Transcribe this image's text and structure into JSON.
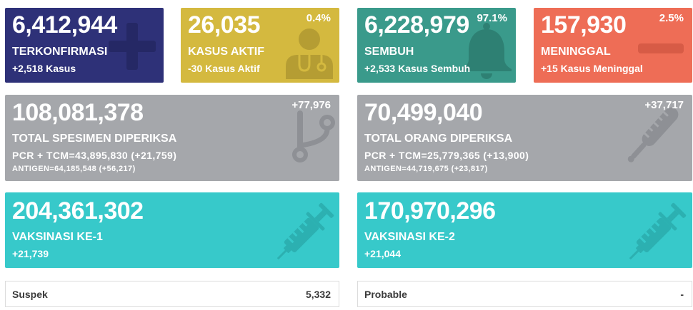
{
  "colors": {
    "confirmed": "#2e3178",
    "active": "#d4b93f",
    "recovered": "#3a9a8b",
    "deaths": "#ee6d56",
    "tested": "#a5a7ab",
    "vaccine": "#37c9ca"
  },
  "summary_cards": [
    {
      "value": "6,412,944",
      "label": "TERKONFIRMASI",
      "delta": "+2,518 Kasus",
      "icon": "plus-icon"
    },
    {
      "value": "26,035",
      "percent": "0.4%",
      "label": "KASUS AKTIF",
      "delta": "-30 Kasus Aktif",
      "icon": "doctor-icon"
    },
    {
      "value": "6,228,979",
      "percent": "97.1%",
      "label": "SEMBUH",
      "delta": "+2,533 Kasus Sembuh",
      "icon": "bell-icon"
    },
    {
      "value": "157,930",
      "percent": "2.5%",
      "label": "MENINGGAL",
      "delta": "+15 Kasus Meninggal",
      "icon": "minus-icon"
    }
  ],
  "testing_cards": [
    {
      "value": "108,081,378",
      "change": "+77,976",
      "label": "TOTAL SPESIMEN DIPERIKSA",
      "pcr_tcm": "PCR + TCM=43,895,830 (+21,759)",
      "antigen": "ANTIGEN=64,185,548 (+56,217)",
      "icon": "branch-icon"
    },
    {
      "value": "70,499,040",
      "change": "+37,717",
      "label": "TOTAL ORANG DIPERIKSA",
      "pcr_tcm": "PCR + TCM=25,779,365 (+13,900)",
      "antigen": "ANTIGEN=44,719,675 (+23,817)",
      "icon": "thermometer-icon"
    }
  ],
  "vaccine_cards": [
    {
      "value": "204,361,302",
      "label": "VAKSINASI KE-1",
      "delta": "+21,739",
      "icon": "syringe-icon"
    },
    {
      "value": "170,970,296",
      "label": "VAKSINASI KE-2",
      "delta": "+21,044",
      "icon": "syringe-icon"
    }
  ],
  "footer_rows": [
    {
      "label": "Suspek",
      "value": "5,332"
    },
    {
      "label": "Probable",
      "value": "-"
    }
  ]
}
